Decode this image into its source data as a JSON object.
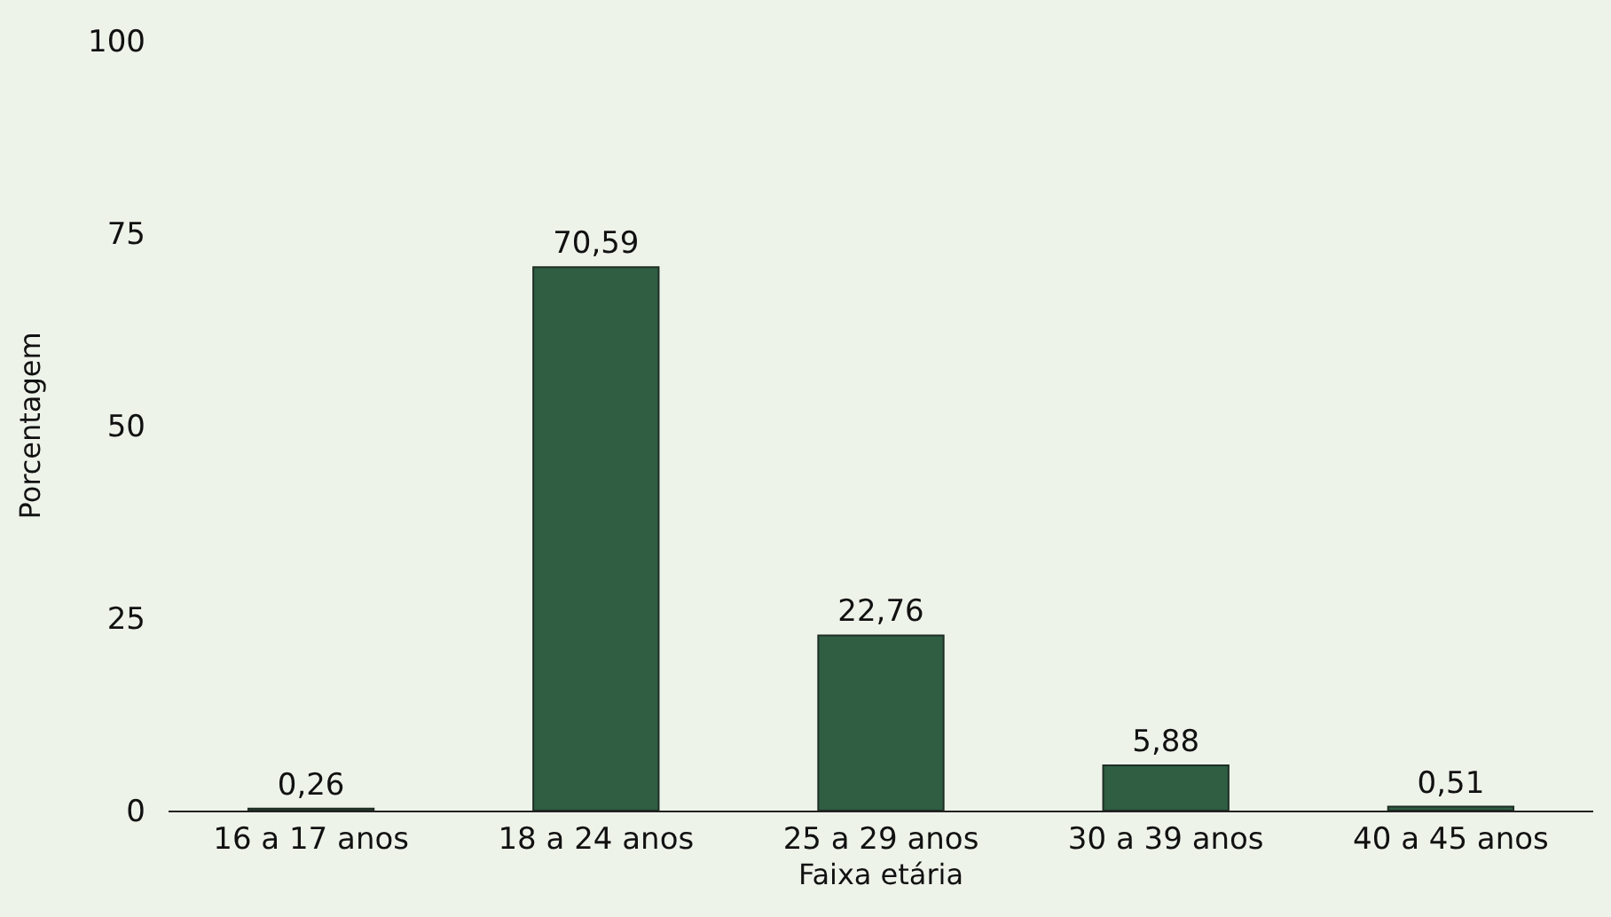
{
  "chart_data": {
    "type": "bar",
    "xlabel": "Faixa etária",
    "ylabel": "Porcentagem",
    "categories": [
      "16 a 17 anos",
      "18 a 24 anos",
      "25 a 29 anos",
      "30 a 39 anos",
      "40 a 45 anos"
    ],
    "values": [
      0.26,
      70.59,
      22.76,
      5.88,
      0.51
    ],
    "color": "#2f5e43",
    "value_labels": [
      "0,26",
      "70,59",
      "22,76",
      "5,88",
      "0,51"
    ],
    "ylim": [
      0,
      100
    ],
    "yticks": [
      0,
      25,
      50,
      75,
      100
    ],
    "grid": false
  }
}
